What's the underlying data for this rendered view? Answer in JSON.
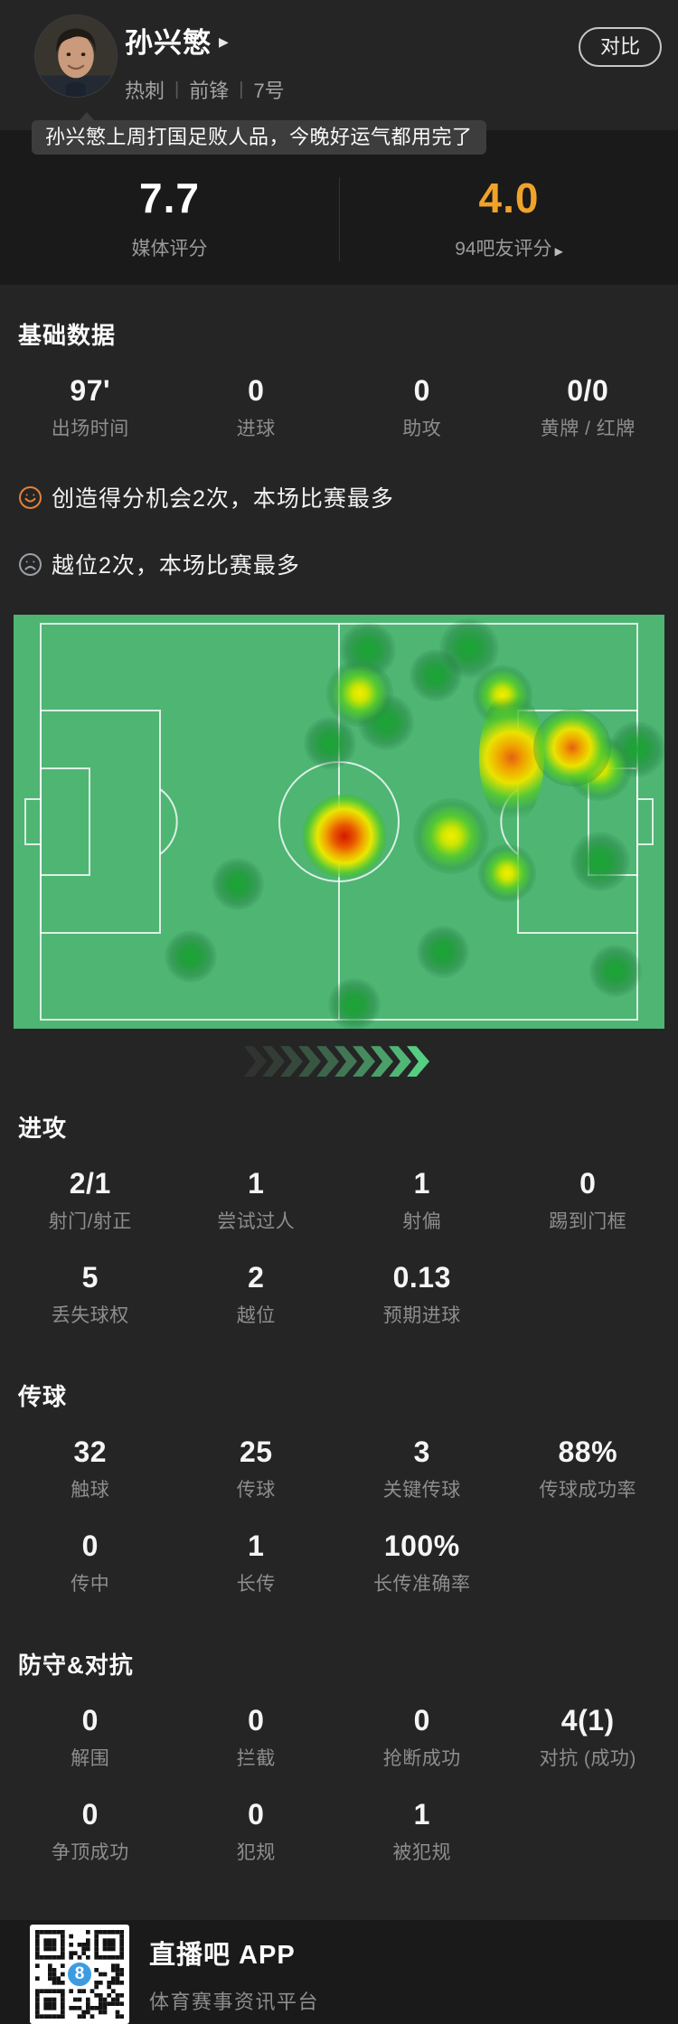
{
  "header": {
    "player_name": "孙兴慜",
    "team": "热刺",
    "position": "前锋",
    "number": "7号",
    "compare_label": "对比",
    "tooltip": "孙兴慜上周打国足败人品，今晚好运气都用完了"
  },
  "icons": {
    "triangle_right": "▶"
  },
  "ratings": {
    "media": {
      "value": "7.7",
      "label": "媒体评分"
    },
    "fans": {
      "value": "4.0",
      "label": "94吧友评分"
    }
  },
  "sections": {
    "basic": {
      "title": "基础数据",
      "stats": [
        {
          "value": "97'",
          "label": "出场时间"
        },
        {
          "value": "0",
          "label": "进球"
        },
        {
          "value": "0",
          "label": "助攻"
        },
        {
          "value": "0/0",
          "label": "黄牌 / 红牌"
        }
      ]
    },
    "attack": {
      "title": "进攻",
      "stats": [
        {
          "value": "2/1",
          "label": "射门/射正"
        },
        {
          "value": "1",
          "label": "尝试过人"
        },
        {
          "value": "1",
          "label": "射偏"
        },
        {
          "value": "0",
          "label": "踢到门框"
        },
        {
          "value": "5",
          "label": "丢失球权"
        },
        {
          "value": "2",
          "label": "越位"
        },
        {
          "value": "0.13",
          "label": "预期进球"
        }
      ]
    },
    "passing": {
      "title": "传球",
      "stats": [
        {
          "value": "32",
          "label": "触球"
        },
        {
          "value": "25",
          "label": "传球"
        },
        {
          "value": "3",
          "label": "关键传球"
        },
        {
          "value": "88%",
          "label": "传球成功率"
        },
        {
          "value": "0",
          "label": "传中"
        },
        {
          "value": "1",
          "label": "长传"
        },
        {
          "value": "100%",
          "label": "长传准确率"
        }
      ]
    },
    "defense": {
      "title": "防守&对抗",
      "stats": [
        {
          "value": "0",
          "label": "解围"
        },
        {
          "value": "0",
          "label": "拦截"
        },
        {
          "value": "0",
          "label": "抢断成功"
        },
        {
          "value": "4(1)",
          "label": "对抗 (成功)"
        },
        {
          "value": "0",
          "label": "争顶成功"
        },
        {
          "value": "0",
          "label": "犯规"
        },
        {
          "value": "1",
          "label": "被犯规"
        }
      ]
    }
  },
  "highlights": [
    {
      "icon": "smile-icon",
      "color": "#e0823c",
      "text": "创造得分机会2次，本场比赛最多"
    },
    {
      "icon": "frown-icon",
      "color": "#99a0a8",
      "text": "越位2次，本场比赛最多"
    }
  ],
  "heatmap": {
    "pitch_color": "#4eb573",
    "line_color": "rgba(255,255,255,0.8)",
    "points": [
      {
        "x": 54.5,
        "y": 8.5,
        "level": "low",
        "s": 62
      },
      {
        "x": 70.0,
        "y": 8.0,
        "level": "low",
        "s": 66
      },
      {
        "x": 64.8,
        "y": 14.5,
        "level": "low",
        "s": 58
      },
      {
        "x": 53.2,
        "y": 19.0,
        "level": "mid",
        "s": 74
      },
      {
        "x": 57.2,
        "y": 26.0,
        "level": "low",
        "s": 62
      },
      {
        "x": 75.2,
        "y": 19.5,
        "level": "mid",
        "s": 66
      },
      {
        "x": 48.6,
        "y": 31.0,
        "level": "low",
        "s": 58
      },
      {
        "x": 76.5,
        "y": 34.5,
        "level": "high",
        "s": 72,
        "h": 150
      },
      {
        "x": 85.8,
        "y": 32.0,
        "level": "high",
        "s": 86
      },
      {
        "x": 90.0,
        "y": 37.0,
        "level": "mid",
        "s": 72
      },
      {
        "x": 95.8,
        "y": 32.5,
        "level": "low",
        "s": 62
      },
      {
        "x": 50.8,
        "y": 53.5,
        "level": "peak",
        "s": 92
      },
      {
        "x": 67.2,
        "y": 53.5,
        "level": "mid",
        "s": 84
      },
      {
        "x": 75.8,
        "y": 62.5,
        "level": "mid",
        "s": 64
      },
      {
        "x": 90.2,
        "y": 59.5,
        "level": "low",
        "s": 66
      },
      {
        "x": 34.5,
        "y": 65.0,
        "level": "low",
        "s": 58
      },
      {
        "x": 27.2,
        "y": 82.5,
        "level": "low",
        "s": 58
      },
      {
        "x": 66.0,
        "y": 81.5,
        "level": "low",
        "s": 58
      },
      {
        "x": 92.5,
        "y": 86.0,
        "level": "low",
        "s": 58
      },
      {
        "x": 52.4,
        "y": 94.0,
        "level": "low",
        "s": 58
      }
    ]
  },
  "decor": {
    "chevron_count": 10,
    "chevron_bright": "#55cb80"
  },
  "footer": {
    "app_name": "直播吧 APP",
    "tagline": "体育赛事资讯平台",
    "logo_glyph": "8"
  }
}
